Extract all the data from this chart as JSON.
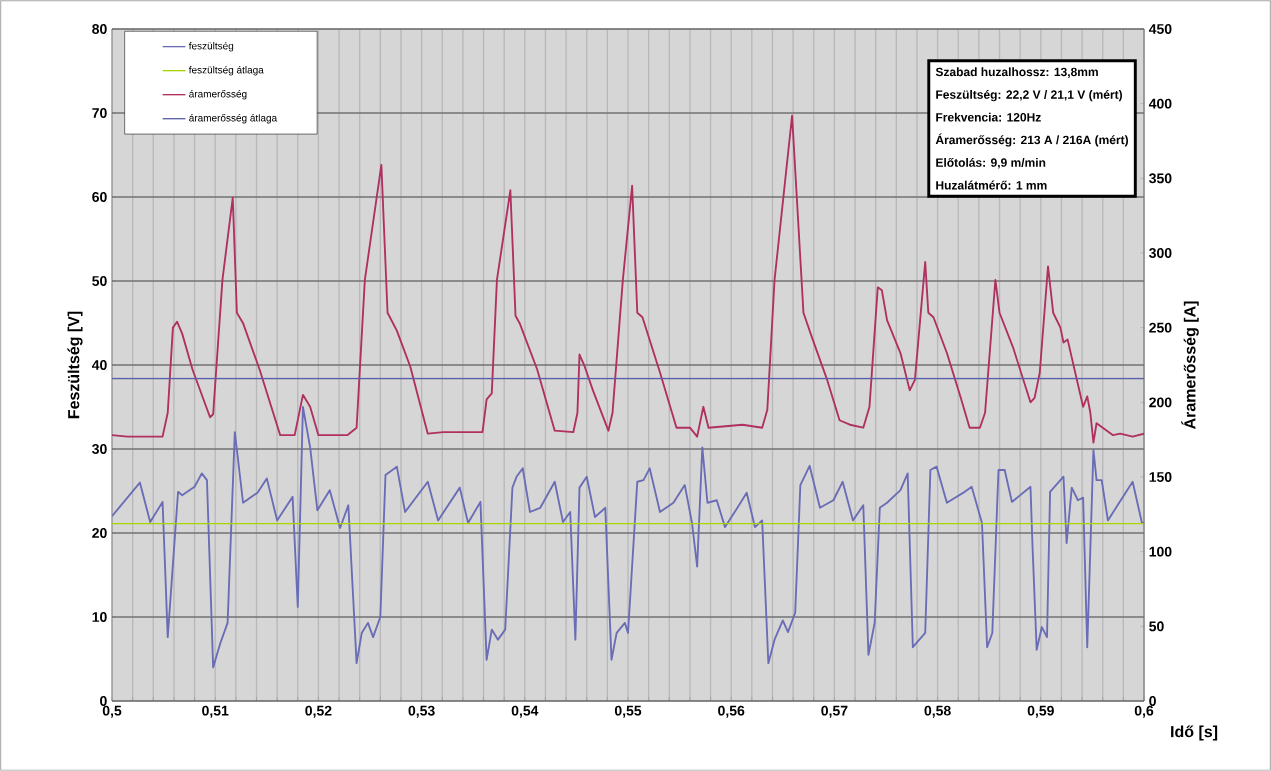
{
  "chart_data": {
    "type": "line",
    "xlabel": "Idő  [s]",
    "ylabel": "Feszültség [V]",
    "y2label": "Áramerősség [A]",
    "xlim": [
      0.5,
      0.6
    ],
    "xticks": [
      {
        "value": 0.5,
        "label": "0,5"
      },
      {
        "value": 0.502,
        "label": null
      },
      {
        "value": 0.504,
        "label": null
      },
      {
        "value": 0.506,
        "label": null
      },
      {
        "value": 0.508,
        "label": null
      },
      {
        "value": 0.51,
        "label": "0,51"
      },
      {
        "value": 0.512,
        "label": null
      },
      {
        "value": 0.514,
        "label": null
      },
      {
        "value": 0.516,
        "label": null
      },
      {
        "value": 0.518,
        "label": null
      },
      {
        "value": 0.52,
        "label": "0,52"
      },
      {
        "value": 0.522,
        "label": null
      },
      {
        "value": 0.524,
        "label": null
      },
      {
        "value": 0.526,
        "label": null
      },
      {
        "value": 0.528,
        "label": null
      },
      {
        "value": 0.53,
        "label": "0,53"
      },
      {
        "value": 0.532,
        "label": null
      },
      {
        "value": 0.534,
        "label": null
      },
      {
        "value": 0.536,
        "label": null
      },
      {
        "value": 0.538,
        "label": null
      },
      {
        "value": 0.54,
        "label": "0,54"
      },
      {
        "value": 0.542,
        "label": null
      },
      {
        "value": 0.544,
        "label": null
      },
      {
        "value": 0.546,
        "label": null
      },
      {
        "value": 0.548,
        "label": null
      },
      {
        "value": 0.55,
        "label": "0,55"
      },
      {
        "value": 0.552,
        "label": null
      },
      {
        "value": 0.554,
        "label": null
      },
      {
        "value": 0.556,
        "label": null
      },
      {
        "value": 0.558,
        "label": null
      },
      {
        "value": 0.56,
        "label": "0,56"
      },
      {
        "value": 0.562,
        "label": null
      },
      {
        "value": 0.564,
        "label": null
      },
      {
        "value": 0.566,
        "label": null
      },
      {
        "value": 0.568,
        "label": null
      },
      {
        "value": 0.57,
        "label": "0,57"
      },
      {
        "value": 0.572,
        "label": null
      },
      {
        "value": 0.574,
        "label": null
      },
      {
        "value": 0.576,
        "label": null
      },
      {
        "value": 0.578,
        "label": null
      },
      {
        "value": 0.58,
        "label": "0,58"
      },
      {
        "value": 0.582,
        "label": null
      },
      {
        "value": 0.584,
        "label": null
      },
      {
        "value": 0.586,
        "label": null
      },
      {
        "value": 0.588,
        "label": null
      },
      {
        "value": 0.59,
        "label": "0,59"
      },
      {
        "value": 0.592,
        "label": null
      },
      {
        "value": 0.594,
        "label": null
      },
      {
        "value": 0.596,
        "label": null
      },
      {
        "value": 0.598,
        "label": null
      },
      {
        "value": 0.6,
        "label": "0,6"
      }
    ],
    "ylim": [
      0,
      80
    ],
    "yticks": [
      0,
      10,
      20,
      30,
      40,
      50,
      60,
      70,
      80
    ],
    "y2lim": [
      0,
      450
    ],
    "y2ticks": [
      0,
      50,
      100,
      150,
      200,
      250,
      300,
      350,
      400,
      450
    ],
    "grid": true,
    "legend": "top left",
    "annotations": [
      "Szabad huzalhossz: 13,8mm",
      "Feszültség: 22,2 V / 21,1 V (mért)",
      "Frekvencia: 120Hz",
      "Áramerősség: 213 A / 216A (mért)",
      "Előtolás: 9,9 m/min",
      "Huzalátmérő: 1 mm"
    ],
    "series": [
      {
        "name": "feszültség",
        "color": "#6a6db5",
        "x": [
          0.5,
          0.5027,
          0.5037,
          0.5049,
          0.5054,
          0.5064,
          0.5068,
          0.508,
          0.5087,
          0.5092,
          0.5098,
          0.5105,
          0.5112,
          0.5119,
          0.5127,
          0.5141,
          0.515,
          0.516,
          0.5175,
          0.518,
          0.5185,
          0.5192,
          0.5199,
          0.5211,
          0.5221,
          0.5229,
          0.5237,
          0.5242,
          0.5248,
          0.5253,
          0.526,
          0.5265,
          0.5276,
          0.5284,
          0.5306,
          0.5316,
          0.5337,
          0.5345,
          0.5357,
          0.5363,
          0.5368,
          0.5374,
          0.5381,
          0.5388,
          0.5392,
          0.5398,
          0.5405,
          0.5415,
          0.5429,
          0.5437,
          0.5444,
          0.5449,
          0.5453,
          0.546,
          0.5468,
          0.5478,
          0.5484,
          0.5489,
          0.5497,
          0.55,
          0.5509,
          0.5515,
          0.5521,
          0.5531,
          0.5544,
          0.5555,
          0.5562,
          0.5567,
          0.5572,
          0.5577,
          0.5586,
          0.5594,
          0.5606,
          0.5615,
          0.5623,
          0.563,
          0.5636,
          0.5642,
          0.565,
          0.5655,
          0.5662,
          0.5667,
          0.5676,
          0.5686,
          0.5699,
          0.5708,
          0.5718,
          0.5728,
          0.5733,
          0.5739,
          0.5744,
          0.5751,
          0.5764,
          0.5771,
          0.5776,
          0.5788,
          0.5793,
          0.5799,
          0.5809,
          0.5825,
          0.5833,
          0.5843,
          0.5848,
          0.5853,
          0.5859,
          0.5865,
          0.5872,
          0.589,
          0.5892,
          0.5896,
          0.5901,
          0.5906,
          0.5909,
          0.5922,
          0.5925,
          0.593,
          0.5936,
          0.5941,
          0.5945,
          0.5951,
          0.5954,
          0.5959,
          0.5965,
          0.5989,
          0.5998,
          0.6
        ],
        "values": [
          22.0,
          26.0,
          21.3,
          23.7,
          7.6,
          24.9,
          24.5,
          25.5,
          27.1,
          26.3,
          4.0,
          6.9,
          9.3,
          32.0,
          23.6,
          24.8,
          26.5,
          21.5,
          24.3,
          11.2,
          35.0,
          30.2,
          22.7,
          25.1,
          20.6,
          23.3,
          4.5,
          8.1,
          9.3,
          7.6,
          10.0,
          26.9,
          27.9,
          22.5,
          26.1,
          21.5,
          25.4,
          21.2,
          23.7,
          4.9,
          8.5,
          7.3,
          8.5,
          25.4,
          26.7,
          27.7,
          22.5,
          23.0,
          26.1,
          21.3,
          22.5,
          7.3,
          25.4,
          26.7,
          21.9,
          23.0,
          4.9,
          8.1,
          9.3,
          8.1,
          26.1,
          26.3,
          27.7,
          22.5,
          23.6,
          25.7,
          21.2,
          16.0,
          30.2,
          23.6,
          23.9,
          20.7,
          23.0,
          24.8,
          20.7,
          21.5,
          4.5,
          7.3,
          9.6,
          8.2,
          10.5,
          25.7,
          28.0,
          23.0,
          23.9,
          26.1,
          21.5,
          23.3,
          5.5,
          9.3,
          23.0,
          23.6,
          25.1,
          27.1,
          6.4,
          8.1,
          27.5,
          27.9,
          23.6,
          24.8,
          25.5,
          21.2,
          6.4,
          8.1,
          27.5,
          27.5,
          23.7,
          25.5,
          18.3,
          6.1,
          8.8,
          7.6,
          24.9,
          26.7,
          18.8,
          25.4,
          23.9,
          24.2,
          6.4,
          29.9,
          26.3,
          26.3,
          21.5,
          26.1,
          21.2,
          21.2
        ]
      },
      {
        "name": "feszültség átlaga",
        "color": "#a8d400",
        "x": [
          0.5,
          0.6
        ],
        "values": [
          21.1,
          21.1
        ]
      },
      {
        "name": "áramerősség",
        "color": "#b03060",
        "axis": "y2",
        "x": [
          0.5,
          0.5015,
          0.5049,
          0.5054,
          0.5059,
          0.5063,
          0.5068,
          0.5078,
          0.5095,
          0.5098,
          0.5107,
          0.5117,
          0.5121,
          0.5127,
          0.5143,
          0.5163,
          0.5177,
          0.5185,
          0.5192,
          0.52,
          0.5228,
          0.5237,
          0.5245,
          0.5261,
          0.5267,
          0.5276,
          0.5289,
          0.5306,
          0.5321,
          0.5359,
          0.5363,
          0.5368,
          0.5373,
          0.5386,
          0.5391,
          0.5395,
          0.5412,
          0.5429,
          0.5447,
          0.5451,
          0.5453,
          0.5458,
          0.5466,
          0.5481,
          0.5485,
          0.5495,
          0.5504,
          0.5509,
          0.5514,
          0.5531,
          0.5547,
          0.556,
          0.5567,
          0.5573,
          0.5578,
          0.5611,
          0.563,
          0.5635,
          0.5642,
          0.5659,
          0.567,
          0.5679,
          0.5693,
          0.5705,
          0.5715,
          0.5728,
          0.5734,
          0.5742,
          0.5746,
          0.5751,
          0.5764,
          0.5773,
          0.5778,
          0.5788,
          0.5791,
          0.5796,
          0.5809,
          0.5822,
          0.5831,
          0.5841,
          0.5846,
          0.5856,
          0.586,
          0.5873,
          0.589,
          0.5894,
          0.5899,
          0.5907,
          0.5912,
          0.5919,
          0.5922,
          0.5926,
          0.5935,
          0.5941,
          0.5945,
          0.5948,
          0.5951,
          0.5954,
          0.597,
          0.5977,
          0.5989,
          0.6
        ],
        "values": [
          178,
          177,
          177,
          193,
          250,
          254,
          246,
          222,
          190,
          192,
          282,
          337,
          260,
          253,
          222,
          178,
          178,
          205,
          197,
          178,
          178,
          183,
          282,
          359,
          260,
          248,
          224,
          179,
          180,
          180,
          202,
          206,
          282,
          342,
          258,
          253,
          222,
          181,
          180,
          193,
          232,
          224,
          208,
          181,
          193,
          282,
          345,
          260,
          257,
          220,
          183,
          183,
          177,
          197,
          183,
          185,
          183,
          195,
          282,
          392,
          260,
          242,
          215,
          188,
          185,
          183,
          197,
          277,
          275,
          255,
          233,
          208,
          215,
          294,
          260,
          257,
          233,
          204,
          183,
          183,
          193,
          282,
          260,
          237,
          200,
          203,
          220,
          291,
          260,
          250,
          240,
          242,
          215,
          197,
          204,
          193,
          173,
          186,
          178,
          179,
          177,
          179
        ]
      },
      {
        "name": "áramerősség átlaga",
        "color": "#5b5fa8",
        "axis": "y2",
        "x": [
          0.5,
          0.6
        ],
        "values": [
          216,
          216
        ]
      }
    ]
  }
}
